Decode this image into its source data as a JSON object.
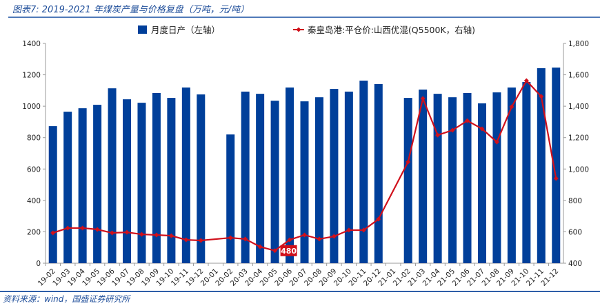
{
  "title": "图表7: 2019-2021 年煤炭产量与价格复盘（万吨，元/吨）",
  "source": "资料来源：wind，国盛证券研究所",
  "chart_data": {
    "type": "bar+line",
    "categories": [
      "19-02",
      "19-03",
      "19-04",
      "19-05",
      "19-06",
      "19-07",
      "19-08",
      "19-09",
      "19-10",
      "19-11",
      "19-12",
      "20-01",
      "20-02",
      "20-03",
      "20-04",
      "20-05",
      "20-06",
      "20-07",
      "20-08",
      "20-09",
      "20-10",
      "20-11",
      "20-12",
      "21-01",
      "21-02",
      "21-03",
      "21-04",
      "21-05",
      "21-06",
      "21-07",
      "21-08",
      "21-09",
      "21-10",
      "21-11",
      "21-12"
    ],
    "series": [
      {
        "name": "月度日产（左轴）",
        "type": "bar",
        "axis": "left",
        "color": "#003f9a",
        "values": [
          873,
          965,
          987,
          1009,
          1114,
          1044,
          1022,
          1084,
          1053,
          1119,
          1075,
          null,
          820,
          1093,
          1079,
          1035,
          1119,
          1031,
          1057,
          1110,
          1093,
          1163,
          1141,
          null,
          1053,
          1106,
          1079,
          1057,
          1084,
          1018,
          1088,
          1119,
          1154,
          1242,
          1246
        ]
      },
      {
        "name": "秦皇岛港:平仓价:山西优混(Q5500K，右轴)",
        "type": "line",
        "axis": "right",
        "color": "#d0101b",
        "values": [
          593,
          624,
          624,
          615,
          593,
          597,
          584,
          580,
          575,
          549,
          545,
          null,
          562,
          554,
          505,
          480,
          549,
          580,
          554,
          571,
          611,
          611,
          681,
          null,
          1045,
          1449,
          1216,
          1247,
          1308,
          1256,
          1172,
          1396,
          1563,
          1462,
          940
        ]
      }
    ],
    "annotations": [
      {
        "category": "20-05",
        "text": "480"
      }
    ],
    "yleft": {
      "range": [
        0,
        1400
      ],
      "ticks": [
        "0",
        "200",
        "400",
        "600",
        "800",
        "1000",
        "1200",
        "1400"
      ]
    },
    "yright": {
      "range": [
        400,
        1800
      ],
      "ticks": [
        "400",
        "600",
        "800",
        "1,000",
        "1,200",
        "1,400",
        "1,600",
        "1,800"
      ]
    },
    "grid": false,
    "legend": "top"
  }
}
